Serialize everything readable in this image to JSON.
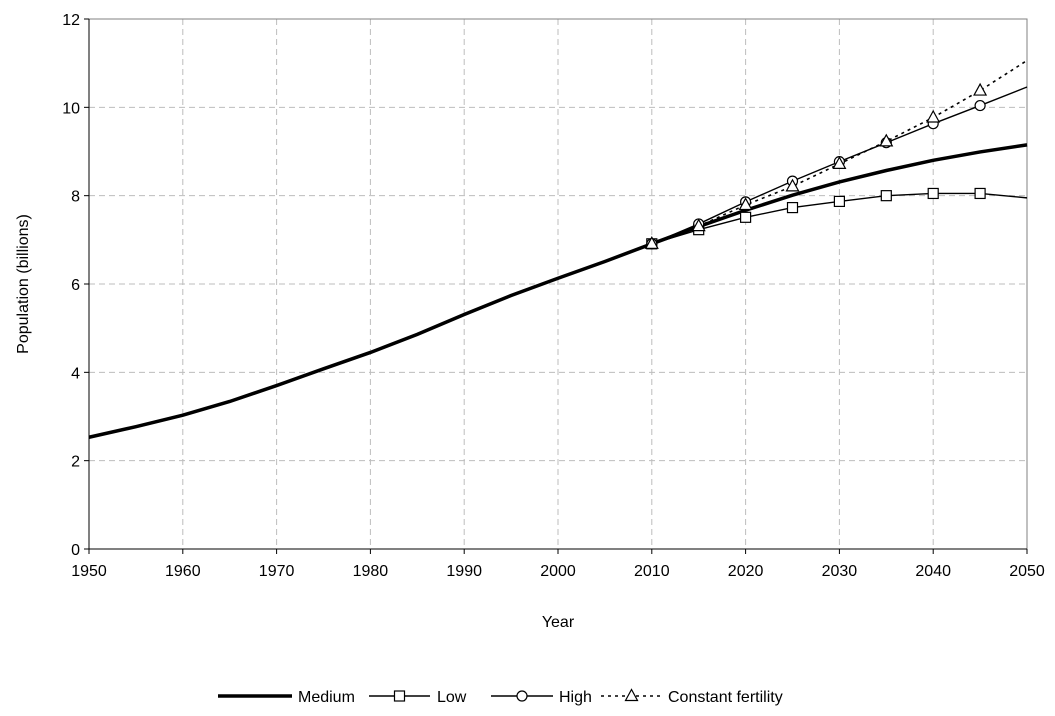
{
  "chart_data": {
    "type": "line",
    "title": "",
    "xlabel": "Year",
    "ylabel": "Population (billions)",
    "xlim": [
      1950,
      2050
    ],
    "ylim": [
      0,
      12
    ],
    "x_ticks": [
      "1950",
      "1960",
      "1970",
      "1980",
      "1990",
      "2000",
      "2010",
      "2020",
      "2030",
      "2040",
      "2050"
    ],
    "y_ticks": [
      "0",
      "2",
      "4",
      "6",
      "8",
      "10",
      "12"
    ],
    "grid": true,
    "legend_position": "bottom",
    "series": [
      {
        "name": "Medium",
        "style": "solid-thick",
        "marker": "none",
        "color": "#000000",
        "points": [
          [
            1950,
            2.53
          ],
          [
            1955,
            2.77
          ],
          [
            1960,
            3.03
          ],
          [
            1965,
            3.34
          ],
          [
            1970,
            3.7
          ],
          [
            1975,
            4.08
          ],
          [
            1980,
            4.45
          ],
          [
            1985,
            4.86
          ],
          [
            1990,
            5.31
          ],
          [
            1995,
            5.74
          ],
          [
            2000,
            6.13
          ],
          [
            2005,
            6.51
          ],
          [
            2010,
            6.91
          ],
          [
            2015,
            7.3
          ],
          [
            2020,
            7.67
          ],
          [
            2025,
            8.01
          ],
          [
            2030,
            8.31
          ],
          [
            2035,
            8.57
          ],
          [
            2040,
            8.8
          ],
          [
            2045,
            8.99
          ],
          [
            2050,
            9.15
          ]
        ]
      },
      {
        "name": "Low",
        "style": "solid",
        "marker": "square",
        "color": "#000000",
        "points": [
          [
            2010,
            6.91
          ],
          [
            2015,
            7.23
          ],
          [
            2020,
            7.51
          ],
          [
            2025,
            7.73
          ],
          [
            2030,
            7.87
          ],
          [
            2035,
            8.0
          ],
          [
            2040,
            8.05
          ],
          [
            2045,
            8.05
          ],
          [
            2050,
            7.95
          ]
        ],
        "marker_points": [
          [
            2010,
            6.91
          ],
          [
            2015,
            7.23
          ],
          [
            2020,
            7.51
          ],
          [
            2025,
            7.73
          ],
          [
            2030,
            7.87
          ],
          [
            2035,
            8.0
          ],
          [
            2040,
            8.05
          ],
          [
            2045,
            8.05
          ]
        ]
      },
      {
        "name": "High",
        "style": "solid",
        "marker": "circle",
        "color": "#000000",
        "points": [
          [
            2010,
            6.91
          ],
          [
            2015,
            7.36
          ],
          [
            2020,
            7.86
          ],
          [
            2025,
            8.33
          ],
          [
            2030,
            8.77
          ],
          [
            2035,
            9.2
          ],
          [
            2040,
            9.63
          ],
          [
            2045,
            10.04
          ],
          [
            2050,
            10.46
          ]
        ],
        "marker_points": [
          [
            2010,
            6.91
          ],
          [
            2015,
            7.36
          ],
          [
            2020,
            7.86
          ],
          [
            2025,
            8.33
          ],
          [
            2030,
            8.77
          ],
          [
            2035,
            9.2
          ],
          [
            2040,
            9.63
          ],
          [
            2045,
            10.04
          ]
        ]
      },
      {
        "name": "Constant fertility",
        "style": "dotted",
        "marker": "triangle",
        "color": "#000000",
        "points": [
          [
            2010,
            6.91
          ],
          [
            2015,
            7.31
          ],
          [
            2020,
            7.79
          ],
          [
            2025,
            8.21
          ],
          [
            2030,
            8.72
          ],
          [
            2035,
            9.23
          ],
          [
            2040,
            9.77
          ],
          [
            2045,
            10.38
          ],
          [
            2050,
            11.06
          ]
        ],
        "marker_points": [
          [
            2010,
            6.91
          ],
          [
            2015,
            7.31
          ],
          [
            2020,
            7.79
          ],
          [
            2025,
            8.21
          ],
          [
            2030,
            8.72
          ],
          [
            2035,
            9.23
          ],
          [
            2040,
            9.77
          ],
          [
            2045,
            10.38
          ]
        ]
      }
    ]
  }
}
